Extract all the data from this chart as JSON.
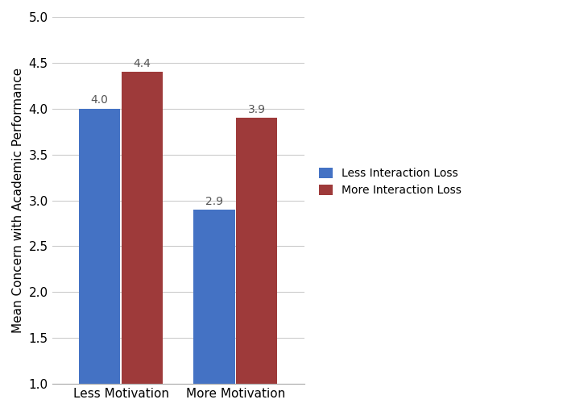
{
  "categories": [
    "Less Motivation",
    "More Motivation"
  ],
  "series": [
    {
      "label": "Less Interaction Loss",
      "values": [
        4.0,
        2.9
      ],
      "color": "#4472C4"
    },
    {
      "label": "More Interaction Loss",
      "values": [
        4.4,
        3.9
      ],
      "color": "#9E3A3A"
    }
  ],
  "ylabel": "Mean Concern with Academic Performance",
  "ylim": [
    1.0,
    5.0
  ],
  "yticks": [
    1.0,
    1.5,
    2.0,
    2.5,
    3.0,
    3.5,
    4.0,
    4.5,
    5.0
  ],
  "bar_width": 0.18,
  "bar_gap": 0.005,
  "group_positions": [
    0.25,
    0.75
  ],
  "label_fontsize": 11,
  "tick_fontsize": 11,
  "ylabel_fontsize": 11,
  "legend_fontsize": 10,
  "bar_label_fontsize": 10,
  "bar_label_color": "#555555",
  "background_color": "#ffffff",
  "grid_color": "#cccccc",
  "xlim": [
    -0.05,
    1.05
  ]
}
